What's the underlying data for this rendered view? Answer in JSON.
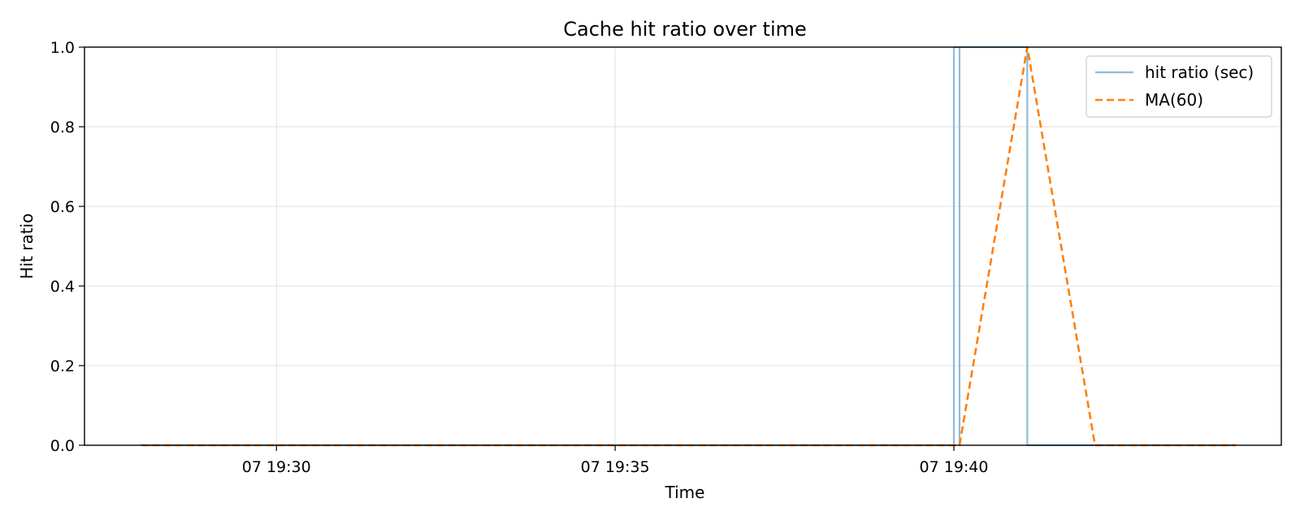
{
  "chart_data": {
    "type": "line",
    "title": "Cache hit ratio over time",
    "xlabel": "Time",
    "ylabel": "Hit ratio",
    "x_axis": {
      "range": [
        "07 19:27:10",
        "07 19:44:50"
      ],
      "ticks": [
        {
          "t": "07 19:30:00",
          "label": "07 19:30"
        },
        {
          "t": "07 19:35:00",
          "label": "07 19:35"
        },
        {
          "t": "07 19:40:00",
          "label": "07 19:40"
        }
      ]
    },
    "ylim": [
      0.0,
      1.0
    ],
    "y_ticks": [
      {
        "value": 0.0,
        "label": "0.0"
      },
      {
        "value": 0.2,
        "label": "0.2"
      },
      {
        "value": 0.4,
        "label": "0.4"
      },
      {
        "value": 0.6,
        "label": "0.6"
      },
      {
        "value": 0.8,
        "label": "0.8"
      },
      {
        "value": 1.0,
        "label": "1.0"
      }
    ],
    "grid": true,
    "legend_position": "top-right",
    "series": [
      {
        "name": "hit ratio (sec)",
        "color": "#8fbcd9",
        "style": "solid",
        "points": [
          {
            "t": "07 19:28:00",
            "v": 0.0
          },
          {
            "t": "07 19:40:00",
            "v": 0.0
          },
          {
            "t": "07 19:40:00",
            "v": 1.0
          },
          {
            "t": "07 19:40:05",
            "v": 1.0
          },
          {
            "t": "07 19:40:05",
            "v": 0.0
          },
          {
            "t": "07 19:40:05",
            "v": 1.0
          },
          {
            "t": "07 19:41:05",
            "v": 1.0
          },
          {
            "t": "07 19:41:05",
            "v": 0.0
          },
          {
            "t": "07 19:44:10",
            "v": 0.0
          }
        ]
      },
      {
        "name": "MA(60)",
        "color": "#ff7f0e",
        "style": "dashed",
        "points": [
          {
            "t": "07 19:28:00",
            "v": 0.0
          },
          {
            "t": "07 19:40:05",
            "v": 0.0
          },
          {
            "t": "07 19:41:05",
            "v": 1.0
          },
          {
            "t": "07 19:42:05",
            "v": 0.0
          },
          {
            "t": "07 19:44:10",
            "v": 0.0
          }
        ]
      }
    ]
  }
}
